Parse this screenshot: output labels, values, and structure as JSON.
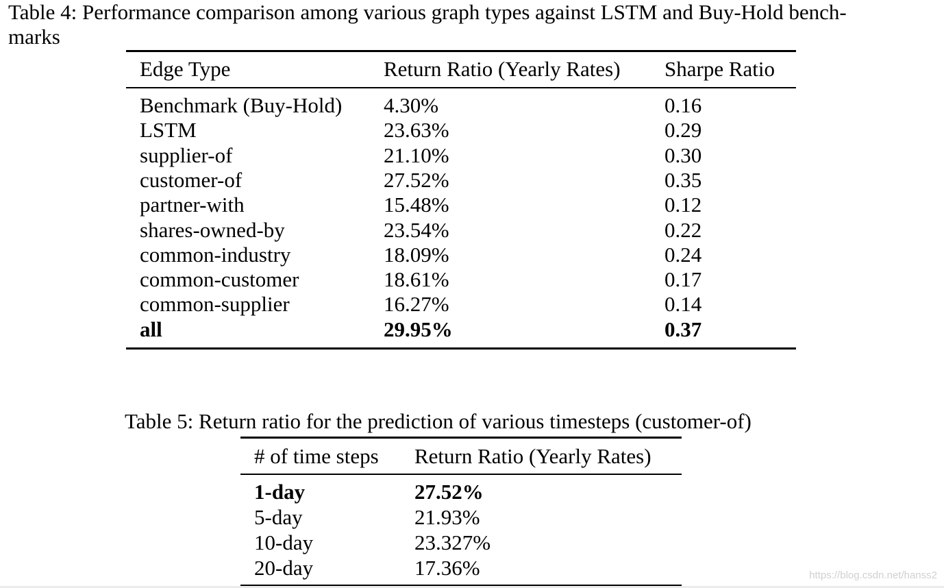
{
  "table4": {
    "caption": "Table 4: Performance comparison among various graph types against LSTM and Buy-Hold bench-marks",
    "caption_line1": "Table 4: Performance comparison among various graph types against LSTM and Buy-Hold bench-",
    "caption_line2": "marks",
    "headers": [
      "Edge Type",
      "Return Ratio (Yearly Rates)",
      "Sharpe Ratio"
    ],
    "rows": [
      {
        "edge": "Benchmark (Buy-Hold)",
        "return": "4.30%",
        "sharpe": "0.16",
        "bold": false
      },
      {
        "edge": "LSTM",
        "return": "23.63%",
        "sharpe": "0.29",
        "bold": false
      },
      {
        "edge": "supplier-of",
        "return": "21.10%",
        "sharpe": "0.30",
        "bold": false
      },
      {
        "edge": "customer-of",
        "return": "27.52%",
        "sharpe": "0.35",
        "bold": false
      },
      {
        "edge": "partner-with",
        "return": "15.48%",
        "sharpe": "0.12",
        "bold": false
      },
      {
        "edge": "shares-owned-by",
        "return": "23.54%",
        "sharpe": "0.22",
        "bold": false
      },
      {
        "edge": "common-industry",
        "return": "18.09%",
        "sharpe": "0.24",
        "bold": false
      },
      {
        "edge": "common-customer",
        "return": "18.61%",
        "sharpe": "0.17",
        "bold": false
      },
      {
        "edge": "common-supplier",
        "return": "16.27%",
        "sharpe": "0.14",
        "bold": false
      },
      {
        "edge": "all",
        "return": "29.95%",
        "sharpe": "0.37",
        "bold": true
      }
    ]
  },
  "table5": {
    "caption": "Table 5: Return ratio for the prediction of various timesteps (customer-of)",
    "headers": [
      "# of time steps",
      "Return Ratio (Yearly Rates)"
    ],
    "rows": [
      {
        "steps": "1-day",
        "return": "27.52%",
        "bold": true
      },
      {
        "steps": "5-day",
        "return": "21.93%",
        "bold": false
      },
      {
        "steps": "10-day",
        "return": "23.327%",
        "bold": false
      },
      {
        "steps": "20-day",
        "return": "17.36%",
        "bold": false
      }
    ]
  },
  "watermark": "https://blog.csdn.net/hanss2"
}
